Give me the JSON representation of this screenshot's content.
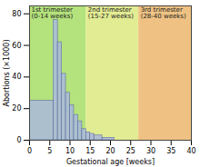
{
  "chart_data": {
    "type": "histogram",
    "x_label": "Gestational age [weeks]",
    "y_label": "Abortions (×1000)",
    "bins": [
      0,
      6,
      7,
      8,
      9,
      10,
      11,
      12,
      13,
      14,
      15,
      16,
      18,
      21
    ],
    "values": [
      25,
      76,
      62,
      42,
      30,
      22,
      16,
      12,
      7,
      5,
      4,
      3,
      1.5
    ],
    "color": "#aab8dc",
    "xlim": [
      0,
      40
    ],
    "xticks": [
      0,
      5,
      10,
      15,
      20,
      25,
      30,
      35,
      40
    ],
    "ylim": [
      0,
      85
    ],
    "yticks": [
      0,
      20,
      40,
      60,
      80
    ],
    "grid": false,
    "bands": [
      {
        "label": "1st trimester",
        "sublabel": "(0-14 weeks)",
        "start": 0,
        "end": 14,
        "color": "#b4e27c"
      },
      {
        "label": "2nd trimester",
        "sublabel": "(15-27 weeks)",
        "start": 14,
        "end": 27,
        "color": "#e2ec93"
      },
      {
        "label": "3rd trimester",
        "sublabel": "(28-40 weeks)",
        "start": 27,
        "end": 40,
        "color": "#efc284"
      }
    ]
  }
}
